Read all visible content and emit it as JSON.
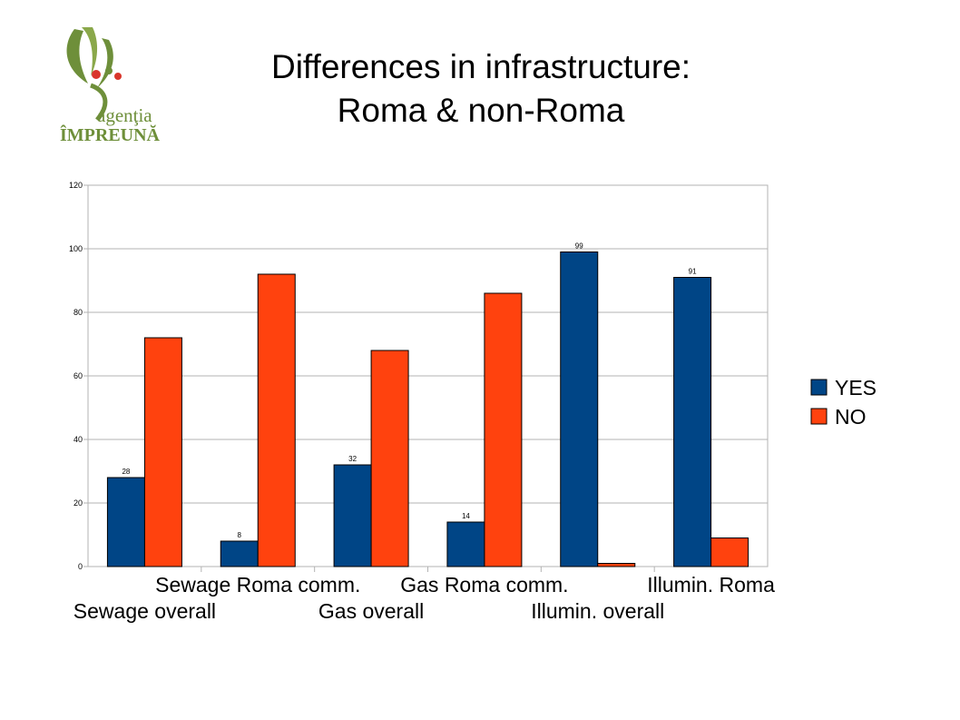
{
  "slide": {
    "title_line1": "Differences in infrastructure:",
    "title_line2": "Roma & non-Roma",
    "logo": {
      "text_top": "agenţia",
      "text_bottom": "ÎMPREUNĂ",
      "colors": {
        "green": "#6e8f3a",
        "red": "#d9362b"
      }
    }
  },
  "chart_data": {
    "type": "bar",
    "categories": [
      "Sewage overall",
      "Sewage Roma comm.",
      "Gas overall",
      "Gas Roma comm.",
      "Illumin. overall",
      "Illumin. Roma"
    ],
    "series": [
      {
        "name": "YES",
        "color": "#004586",
        "values": [
          28,
          8,
          32,
          14,
          99,
          91
        ]
      },
      {
        "name": "NO",
        "color": "#ff420e",
        "values": [
          72,
          92,
          68,
          86,
          1,
          9
        ]
      }
    ],
    "data_labels": {
      "YES": [
        "28",
        "8",
        "32",
        "14",
        "99",
        "91"
      ]
    },
    "ylim": [
      0,
      120
    ],
    "yticks": [
      0,
      20,
      40,
      60,
      80,
      100,
      120
    ],
    "grid": true,
    "legend": "right"
  }
}
